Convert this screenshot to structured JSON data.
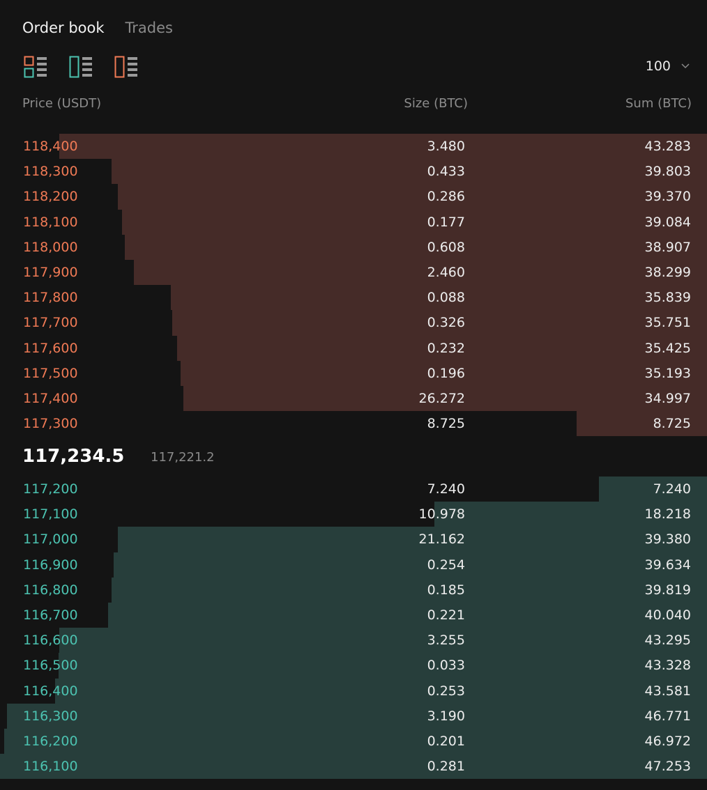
{
  "tabs": [
    {
      "label": "Order book",
      "active": true
    },
    {
      "label": "Trades",
      "active": false
    }
  ],
  "view_icons": [
    {
      "name": "both-sides-view-icon",
      "colors": [
        "#f07a55",
        "#4cc3b1"
      ]
    },
    {
      "name": "bids-only-view-icon",
      "colors": [
        "#4cc3b1"
      ]
    },
    {
      "name": "asks-only-view-icon",
      "colors": [
        "#f07a55"
      ]
    }
  ],
  "depth": {
    "value": "100"
  },
  "columns": {
    "price": "Price (USDT)",
    "size": "Size (BTC)",
    "sum": "Sum (BTC)"
  },
  "colors": {
    "ask_text": "#f07a55",
    "bid_text": "#4cc3b1",
    "ask_bar": "#452b28",
    "bid_bar": "#273e3b",
    "background": "#141414"
  },
  "max_sum": 47.253,
  "asks": [
    {
      "price": "118,400",
      "size": "3.480",
      "sum": "43.283"
    },
    {
      "price": "118,300",
      "size": "0.433",
      "sum": "39.803"
    },
    {
      "price": "118,200",
      "size": "0.286",
      "sum": "39.370"
    },
    {
      "price": "118,100",
      "size": "0.177",
      "sum": "39.084"
    },
    {
      "price": "118,000",
      "size": "0.608",
      "sum": "38.907"
    },
    {
      "price": "117,900",
      "size": "2.460",
      "sum": "38.299"
    },
    {
      "price": "117,800",
      "size": "0.088",
      "sum": "35.839"
    },
    {
      "price": "117,700",
      "size": "0.326",
      "sum": "35.751"
    },
    {
      "price": "117,600",
      "size": "0.232",
      "sum": "35.425"
    },
    {
      "price": "117,500",
      "size": "0.196",
      "sum": "35.193"
    },
    {
      "price": "117,400",
      "size": "26.272",
      "sum": "34.997"
    },
    {
      "price": "117,300",
      "size": "8.725",
      "sum": "8.725"
    }
  ],
  "mid": {
    "last_price": "117,234.5",
    "mark_price": "117,221.2"
  },
  "bids": [
    {
      "price": "117,200",
      "size": "7.240",
      "sum": "7.240"
    },
    {
      "price": "117,100",
      "size": "10.978",
      "sum": "18.218"
    },
    {
      "price": "117,000",
      "size": "21.162",
      "sum": "39.380"
    },
    {
      "price": "116,900",
      "size": "0.254",
      "sum": "39.634"
    },
    {
      "price": "116,800",
      "size": "0.185",
      "sum": "39.819"
    },
    {
      "price": "116,700",
      "size": "0.221",
      "sum": "40.040"
    },
    {
      "price": "116,600",
      "size": "3.255",
      "sum": "43.295"
    },
    {
      "price": "116,500",
      "size": "0.033",
      "sum": "43.328"
    },
    {
      "price": "116,400",
      "size": "0.253",
      "sum": "43.581"
    },
    {
      "price": "116,300",
      "size": "3.190",
      "sum": "46.771"
    },
    {
      "price": "116,200",
      "size": "0.201",
      "sum": "46.972"
    },
    {
      "price": "116,100",
      "size": "0.281",
      "sum": "47.253"
    }
  ]
}
